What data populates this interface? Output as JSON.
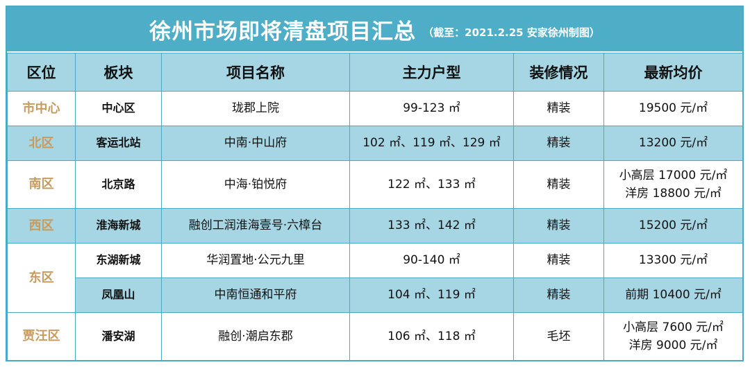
{
  "title": "徐州市场即将清盘项目汇总",
  "note": "（截至：2021.2.25 安家徐州制图）",
  "columns": [
    "区位",
    "板块",
    "项目名称",
    "主力户型",
    "装修情况",
    "最新均价"
  ],
  "rows": [
    {
      "district": "市中心",
      "block": "中心区",
      "project": "珑郡上院",
      "units": "99-123 ㎡",
      "decor": "精装",
      "price": [
        "19500 元/㎡"
      ]
    },
    {
      "district": "北区",
      "block": "客运北站",
      "project": "中南·中山府",
      "units": "102 ㎡、119 ㎡、129 ㎡",
      "decor": "精装",
      "price": [
        "13200 元/㎡"
      ]
    },
    {
      "district": "南区",
      "block": "北京路",
      "project": "中海·铂悦府",
      "units": "122 ㎡、133 ㎡",
      "decor": "精装",
      "price": [
        "小高层 17000 元/㎡",
        "洋房 18800 元/㎡"
      ]
    },
    {
      "district": "西区",
      "block": "淮海新城",
      "project": "融创工润淮海壹号·六樟台",
      "units": "133 ㎡、142 ㎡",
      "decor": "精装",
      "price": [
        "15200 元/㎡"
      ]
    },
    {
      "district": "东区",
      "block": "东湖新城",
      "project": "华润置地·公元九里",
      "units": "90-140 ㎡",
      "decor": "精装",
      "price": [
        "13300 元/㎡"
      ]
    },
    {
      "district": "",
      "block": "凤凰山",
      "project": "中南恒通和平府",
      "units": "104 ㎡、119 ㎡",
      "decor": "精装",
      "price": [
        "前期 10400 元/㎡"
      ]
    },
    {
      "district": "贾汪区",
      "block": "潘安湖",
      "project": "融创·潮启东郡",
      "units": "106 ㎡、118 ㎡",
      "decor": "毛坯",
      "price": [
        "小高层 7600 元/㎡",
        "洋房 9000 元/㎡"
      ]
    }
  ]
}
